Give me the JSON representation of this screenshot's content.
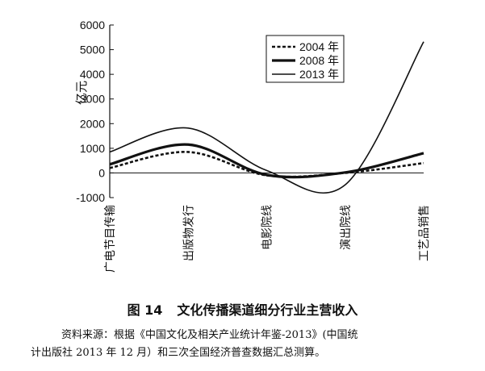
{
  "chart_data": {
    "type": "line",
    "ylabel": "亿元",
    "ylim": [
      -1000,
      6000
    ],
    "yticks": [
      -1000,
      0,
      1000,
      2000,
      3000,
      4000,
      5000,
      6000
    ],
    "categories": [
      "广电节目传输",
      "出版物发行",
      "电影院线",
      "演出院线",
      "工艺品销售"
    ],
    "series": [
      {
        "name": "2004 年",
        "values": [
          200,
          850,
          -100,
          0,
          400
        ],
        "style": "dashed"
      },
      {
        "name": "2008 年",
        "values": [
          350,
          1150,
          -80,
          20,
          800
        ],
        "style": "thick"
      },
      {
        "name": "2013 年",
        "values": [
          850,
          1820,
          100,
          -480,
          5320
        ],
        "style": "thin"
      }
    ],
    "legend_position": "top-right",
    "grid": false
  },
  "figure": {
    "number": "图 14",
    "title": "文化传播渠道细分行业主营收入"
  },
  "source": {
    "line1": "资料来源：根据《中国文化及相关产业统计年鉴-2013》(中国统",
    "line2": "计出版社 2013 年 12 月）和三次全国经济普查数据汇总测算。"
  }
}
